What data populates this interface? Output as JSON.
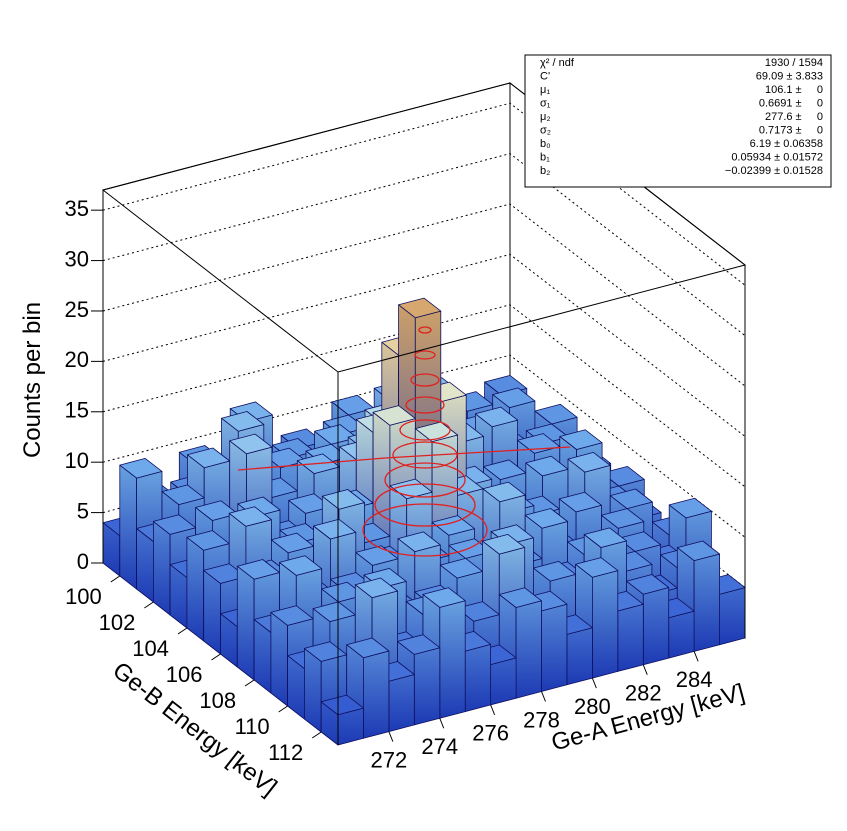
{
  "chart_data": {
    "type": "lego3d",
    "x_label": "Ge-A Energy [keV]",
    "y_label": "Ge-B Energy [keV]",
    "z_label": "Counts per bin",
    "xlim": [
      270,
      286
    ],
    "ylim": [
      99,
      113
    ],
    "zlim": [
      0,
      37
    ],
    "xticks": [
      272,
      274,
      276,
      278,
      280,
      282,
      284
    ],
    "yticks": [
      100,
      102,
      104,
      106,
      108,
      110,
      112
    ],
    "zticks": [
      0,
      5,
      10,
      15,
      20,
      25,
      30,
      35
    ],
    "grid": true,
    "values": [
      [
        4,
        7,
        3,
        9,
        5,
        12,
        6,
        8,
        4,
        10,
        7,
        5,
        9,
        6,
        3,
        8
      ],
      [
        11,
        5,
        8,
        6,
        13,
        4,
        9,
        7,
        10,
        5,
        12,
        6,
        4,
        9,
        7,
        5
      ],
      [
        6,
        9,
        12,
        5,
        7,
        10,
        3,
        11,
        6,
        8,
        5,
        13,
        7,
        4,
        10,
        6
      ],
      [
        8,
        4,
        6,
        14,
        9,
        5,
        11,
        7,
        12,
        4,
        9,
        6,
        10,
        8,
        5,
        9
      ],
      [
        5,
        10,
        7,
        6,
        3,
        12,
        8,
        13,
        6,
        11,
        7,
        4,
        12,
        5,
        9,
        4
      ],
      [
        9,
        6,
        11,
        8,
        10,
        7,
        14,
        17,
        9,
        6,
        13,
        8,
        5,
        10,
        6,
        7
      ],
      [
        7,
        12,
        5,
        9,
        6,
        11,
        18,
        25,
        16,
        9,
        5,
        10,
        8,
        6,
        11,
        5
      ],
      [
        4,
        8,
        10,
        7,
        13,
        9,
        20,
        30,
        21,
        12,
        8,
        6,
        11,
        7,
        4,
        8
      ],
      [
        10,
        5,
        7,
        12,
        5,
        8,
        14,
        19,
        13,
        6,
        10,
        9,
        4,
        12,
        8,
        6
      ],
      [
        6,
        11,
        4,
        8,
        10,
        6,
        9,
        11,
        7,
        13,
        5,
        7,
        10,
        5,
        9,
        3
      ],
      [
        8,
        3,
        9,
        5,
        7,
        12,
        6,
        10,
        4,
        8,
        11,
        5,
        6,
        9,
        4,
        7
      ],
      [
        5,
        9,
        6,
        11,
        4,
        8,
        10,
        5,
        12,
        6,
        7,
        9,
        3,
        8,
        6,
        10
      ],
      [
        7,
        4,
        12,
        6,
        9,
        5,
        7,
        13,
        6,
        9,
        4,
        11,
        8,
        5,
        7,
        4
      ],
      [
        3,
        8,
        5,
        7,
        11,
        6,
        4,
        9,
        8,
        5,
        10,
        6,
        7,
        4,
        9,
        5
      ]
    ],
    "stats": [
      [
        "χ² / ndf",
        "1930 / 1594"
      ],
      [
        "C'",
        "69.09 ± 3.833"
      ],
      [
        "μ₁",
        "106.1 ±     0"
      ],
      [
        "σ₁",
        "0.6691 ±     0"
      ],
      [
        "μ₂",
        "277.6 ±     0"
      ],
      [
        "σ₂",
        "0.7173 ±     0"
      ],
      [
        "b₀",
        "6.19 ± 0.06358"
      ],
      [
        "b₁",
        "0.05934 ± 0.01572"
      ],
      [
        "b₂",
        "−0.02399 ± 0.01528"
      ]
    ]
  }
}
